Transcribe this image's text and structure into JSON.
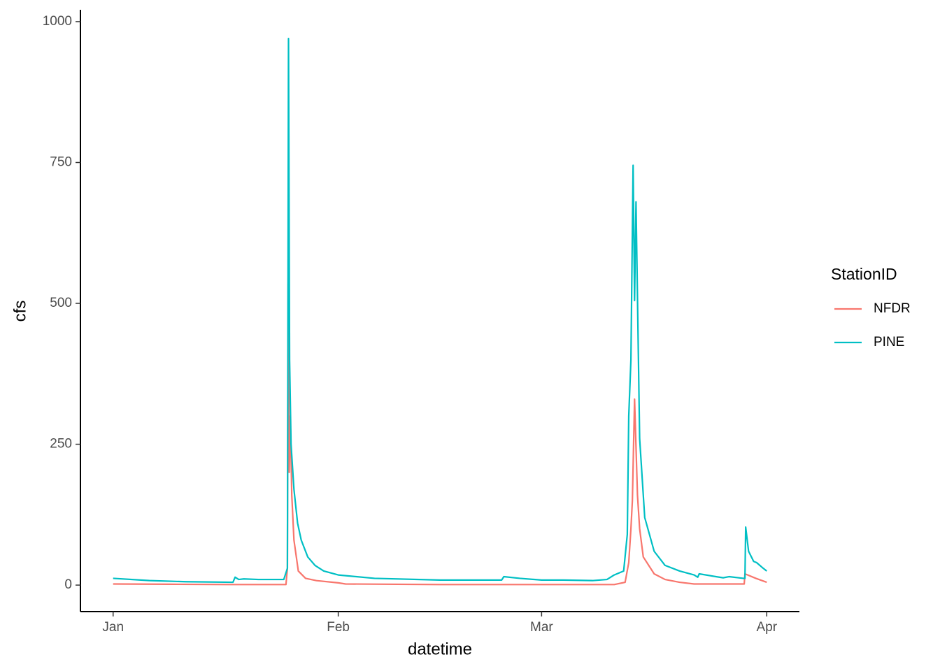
{
  "chart_data": {
    "type": "line",
    "x_label": "datetime",
    "y_label": "cfs",
    "legend_title": "StationID",
    "legend_position": "right",
    "grid": false,
    "xlim": [
      -4.5,
      94.5
    ],
    "xticks": [
      {
        "value": 0,
        "label": "Jan"
      },
      {
        "value": 31,
        "label": "Feb"
      },
      {
        "value": 59,
        "label": "Mar"
      },
      {
        "value": 90,
        "label": "Apr"
      }
    ],
    "ylim": [
      -47,
      1021
    ],
    "yticks": [
      0,
      250,
      500,
      750,
      1000
    ],
    "series": [
      {
        "name": "NFDR",
        "color": "#f8766d",
        "x": [
          0,
          8,
          16,
          23.8,
          24.0,
          24.1,
          24.25,
          24.4,
          24.6,
          24.9,
          25.5,
          26.5,
          28,
          31,
          32,
          45,
          60,
          69,
          70.5,
          71.0,
          71.3,
          71.5,
          71.8,
          72.2,
          72.5,
          73,
          74.5,
          76,
          78,
          80,
          86.9,
          87.0,
          88.5,
          90
        ],
        "values": [
          2,
          1.5,
          1,
          1,
          30,
          535,
          200,
          300,
          160,
          80,
          25,
          12,
          8,
          4,
          2,
          1,
          1,
          1,
          5,
          40,
          100,
          150,
          330,
          160,
          100,
          50,
          20,
          10,
          5,
          2,
          2,
          20,
          12,
          5
        ]
      },
      {
        "name": "PINE",
        "color": "#00bfc4",
        "x": [
          0,
          5,
          10,
          16.5,
          16.8,
          17.3,
          18,
          20,
          23.5,
          24.0,
          24.15,
          24.3,
          24.5,
          24.9,
          25.4,
          25.9,
          26.8,
          27.8,
          29,
          31,
          36,
          45,
          53.5,
          53.8,
          56,
          59,
          62,
          66,
          68,
          69,
          70.3,
          70.8,
          71.0,
          71.3,
          71.6,
          71.8,
          72.0,
          72.5,
          73.2,
          74.5,
          76,
          78,
          80,
          80.5,
          80.7,
          83,
          84,
          84.8,
          86.8,
          87.0,
          87.1,
          87.5,
          88.2,
          88.6,
          89.5,
          90
        ],
        "values": [
          12,
          8,
          6,
          5,
          14,
          10,
          11,
          10,
          10,
          30,
          970,
          400,
          250,
          170,
          110,
          80,
          50,
          35,
          25,
          18,
          12,
          9,
          9,
          15,
          12,
          9,
          9,
          8,
          10,
          18,
          25,
          90,
          300,
          400,
          745,
          505,
          680,
          260,
          120,
          60,
          35,
          25,
          18,
          14,
          20,
          15,
          13,
          15,
          12,
          12,
          103,
          60,
          42,
          40,
          30,
          25
        ]
      }
    ]
  }
}
